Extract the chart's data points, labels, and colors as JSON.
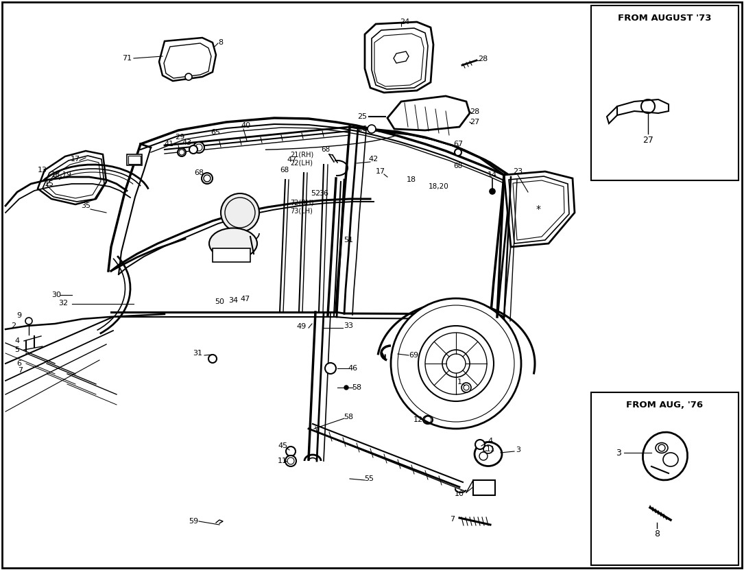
{
  "figsize": [
    10.85,
    8.31
  ],
  "dpi": 100,
  "background_color": "#ffffff",
  "box1_title": "FROM AUGUST '73",
  "box1_label": "27",
  "box2_title": "FROM AUG, '76",
  "box2_labels": [
    "3",
    "8"
  ]
}
